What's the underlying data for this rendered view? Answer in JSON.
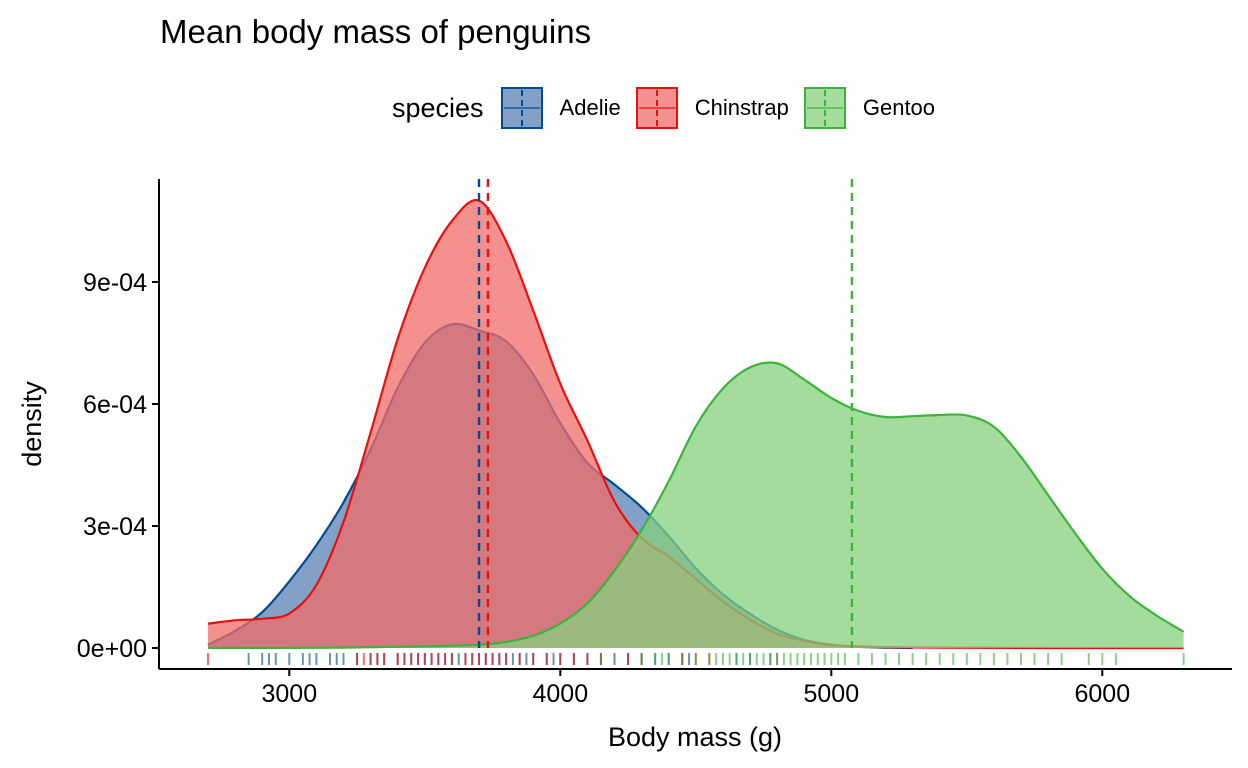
{
  "chart_data": {
    "type": "area",
    "subtype": "density",
    "title": "Mean body mass of penguins",
    "xlabel": "Body mass (g)",
    "ylabel": "density",
    "xlim": [
      2700,
      6300
    ],
    "ylim": [
      0,
      0.00112
    ],
    "x_ticks": [
      3000,
      4000,
      5000,
      6000
    ],
    "x_tick_labels": [
      "3000",
      "4000",
      "5000",
      "6000"
    ],
    "y_ticks": [
      0,
      0.0003,
      0.0006,
      0.0009
    ],
    "y_tick_labels": [
      "0e+00",
      "3e-04",
      "6e-04",
      "9e-04"
    ],
    "legend": {
      "title": "species",
      "position": "top"
    },
    "grid": false,
    "series": [
      {
        "name": "Adelie",
        "line_color": "#004B93",
        "fill_color": "#5A82B3",
        "mean": 3700,
        "density_x": [
          2700,
          2800,
          2900,
          3000,
          3100,
          3200,
          3300,
          3400,
          3500,
          3600,
          3700,
          3800,
          3900,
          4000,
          4100,
          4200,
          4300,
          4400,
          4500,
          4600,
          4700,
          4800,
          4900,
          5000,
          5100,
          5200,
          5300
        ],
        "density_y": [
          8e-06,
          4.2e-05,
          8.8e-05,
          0.000164,
          0.000253,
          0.000358,
          0.000488,
          0.00064,
          0.000751,
          0.000796,
          0.000781,
          0.000754,
          0.000673,
          0.000553,
          0.000455,
          0.000402,
          0.000346,
          0.000275,
          0.000196,
          0.000132,
          8.4e-05,
          4.5e-05,
          2e-05,
          8e-06,
          3e-06,
          1e-06,
          0.0
        ],
        "rug": [
          2850,
          2900,
          2925,
          2950,
          3000,
          3050,
          3075,
          3100,
          3150,
          3175,
          3200,
          3250,
          3300,
          3325,
          3350,
          3400,
          3425,
          3450,
          3475,
          3500,
          3525,
          3550,
          3575,
          3600,
          3625,
          3650,
          3675,
          3700,
          3725,
          3750,
          3775,
          3800,
          3825,
          3850,
          3875,
          3900,
          3950,
          3975,
          4000,
          4050,
          4100,
          4150,
          4200,
          4250,
          4300,
          4350,
          4400,
          4450,
          4475,
          4650,
          4700,
          4775
        ]
      },
      {
        "name": "Chinstrap",
        "line_color": "#E8100F",
        "fill_color": "#F06C69",
        "mean": 3733,
        "density_x": [
          2700,
          2800,
          2900,
          3000,
          3100,
          3200,
          3300,
          3400,
          3500,
          3600,
          3700,
          3800,
          3900,
          4000,
          4100,
          4200,
          4300,
          4400,
          4500,
          4600,
          4700,
          4800,
          4900,
          5000,
          5100,
          5200,
          5400,
          5800,
          6300
        ],
        "density_y": [
          6e-05,
          6.8e-05,
          7.2e-05,
          8.5e-05,
          0.000155,
          0.00031,
          0.00053,
          0.00076,
          0.000935,
          0.00105,
          0.0011,
          0.001,
          0.00083,
          0.00065,
          0.00051,
          0.00036,
          0.00027,
          0.000225,
          0.00017,
          0.000115,
          7e-05,
          3.5e-05,
          1.8e-05,
          7e-06,
          4e-06,
          2e-06,
          1e-06,
          0.0,
          0.0
        ],
        "rug": [
          2700,
          3250,
          3275,
          3300,
          3325,
          3350,
          3400,
          3425,
          3450,
          3475,
          3500,
          3525,
          3550,
          3575,
          3600,
          3650,
          3675,
          3700,
          3725,
          3750,
          3775,
          3800,
          3850,
          3900,
          3950,
          4000,
          4050,
          4100,
          4150,
          4250,
          4300,
          4450,
          4500,
          4550,
          4800
        ]
      },
      {
        "name": "Gentoo",
        "line_color": "#3CB43B",
        "fill_color": "#86D07E",
        "mean": 5076,
        "density_x": [
          2700,
          3200,
          3500,
          3700,
          3800,
          3900,
          4000,
          4100,
          4200,
          4300,
          4400,
          4500,
          4600,
          4700,
          4800,
          4900,
          5000,
          5100,
          5200,
          5300,
          5400,
          5500,
          5600,
          5700,
          5800,
          5900,
          6000,
          6100,
          6200,
          6300
        ],
        "density_y": [
          0.0,
          1e-06,
          4e-06,
          8e-06,
          1.5e-05,
          3e-05,
          6e-05,
          0.00011,
          0.00019,
          0.00029,
          0.00041,
          0.000545,
          0.000638,
          0.00069,
          0.0007,
          0.00066,
          0.000615,
          0.000583,
          0.000568,
          0.00057,
          0.000573,
          0.000572,
          0.000544,
          0.00047,
          0.000376,
          0.000282,
          0.000195,
          0.000128,
          8e-05,
          4e-05
        ],
        "rug": [
          4150,
          4300,
          4350,
          4375,
          4400,
          4450,
          4500,
          4550,
          4575,
          4600,
          4625,
          4650,
          4675,
          4700,
          4725,
          4750,
          4775,
          4800,
          4825,
          4850,
          4875,
          4900,
          4925,
          4950,
          4975,
          5000,
          5025,
          5050,
          5100,
          5150,
          5200,
          5250,
          5300,
          5350,
          5400,
          5450,
          5500,
          5550,
          5600,
          5650,
          5700,
          5750,
          5800,
          5850,
          5950,
          6000,
          6050,
          6300
        ]
      }
    ]
  }
}
